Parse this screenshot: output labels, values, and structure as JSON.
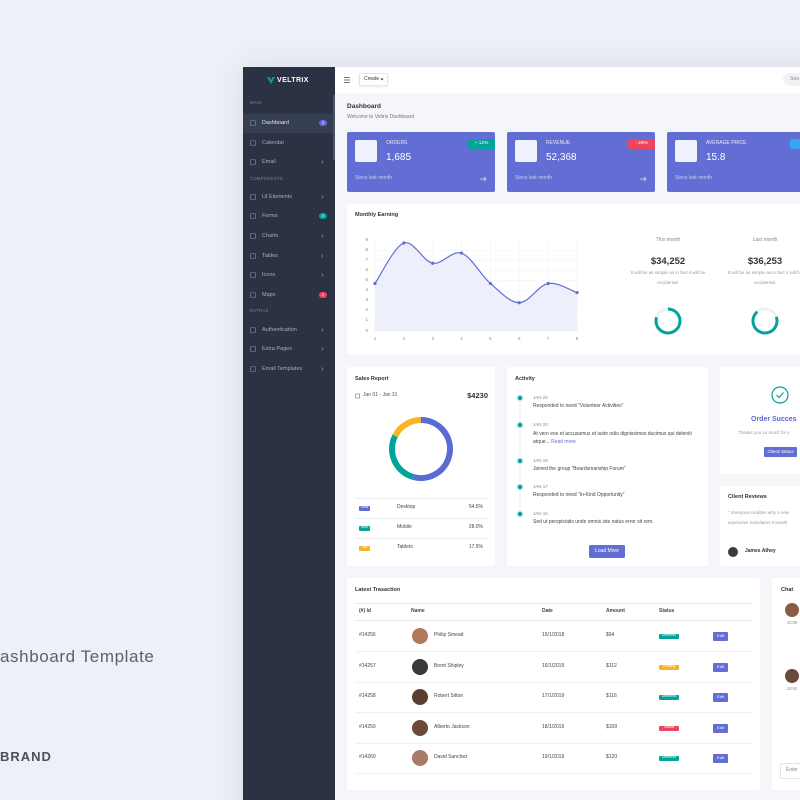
{
  "promo": {
    "title": "ashboard Template",
    "brand": "BRAND"
  },
  "sidebar": {
    "logo": "VELTRIX",
    "sections": [
      {
        "heading": "MAIN",
        "items": [
          {
            "label": "Dashboard",
            "badge": "3"
          },
          {
            "label": "Calendar"
          },
          {
            "label": "Email"
          }
        ]
      },
      {
        "heading": "COMPONENTS",
        "items": [
          {
            "label": "UI Elements"
          },
          {
            "label": "Forms",
            "badge": "8"
          },
          {
            "label": "Charts"
          },
          {
            "label": "Tables"
          },
          {
            "label": "Icons"
          },
          {
            "label": "Maps",
            "badge": "2"
          }
        ]
      },
      {
        "heading": "EXTRAS",
        "items": [
          {
            "label": "Authentication"
          },
          {
            "label": "Extra Pages"
          },
          {
            "label": "Email Templates"
          }
        ]
      }
    ]
  },
  "topbar": {
    "create": "Create",
    "search": "Sea"
  },
  "header": {
    "title": "Dashboard",
    "subtitle": "Welcome to Veltrix Dashboard"
  },
  "stats": [
    {
      "label": "ORDERS",
      "value": "1,685",
      "change": "+ 12%",
      "footer": "Since last month"
    },
    {
      "label": "REVENUE",
      "value": "52,368",
      "change": "- 28%",
      "footer": "Since last month"
    },
    {
      "label": "AVERAGE PRICE",
      "value": "15.8",
      "footer": "Since last month"
    }
  ],
  "monthly_earning": {
    "title": "Monthly Earning",
    "chart": {
      "type": "line",
      "x": [
        1,
        2,
        3,
        4,
        5,
        6,
        7,
        8
      ],
      "values": [
        4.7,
        8.7,
        6.7,
        7.7,
        4.7,
        2.8,
        4.7,
        3.8
      ],
      "yticks": [
        0,
        1,
        2,
        3,
        4,
        5,
        6,
        7,
        8,
        9
      ]
    },
    "summary": [
      {
        "period": "This month",
        "amount": "$34,252",
        "note": "It will be as simple as in fact it will be occidental."
      },
      {
        "period": "Last month",
        "amount": "$36,253",
        "note": "It will be as simple as in fact it will be occidental."
      }
    ]
  },
  "sales_report": {
    "title": "Sales Report",
    "range": "Jan 01 - Jan 31",
    "total": "$4230",
    "chart": {
      "type": "pie",
      "categories": [
        "Desktop",
        "Mobile",
        "Tablets"
      ],
      "badges": [
        "Desk",
        "Mob",
        "Tab"
      ],
      "values": [
        54.5,
        28.0,
        17.5
      ],
      "value_labels": [
        "54.5%",
        "28.0%",
        "17.5%"
      ],
      "colors": [
        "#5b6bd5",
        "#02a499",
        "#f8b425"
      ]
    }
  },
  "activity": {
    "title": "Activity",
    "items": [
      {
        "date": "JAN 22",
        "text": "Responded to need “Volunteer Activities”"
      },
      {
        "date": "JAN 20",
        "text": "At vero eos et accusamus et iusto odio dignissimos ducimus qui deleniti atque...",
        "link": "Read more"
      },
      {
        "date": "JAN 19",
        "text": "Joined the group “Boardsmanship Forum”"
      },
      {
        "date": "JAN 17",
        "text": "Responded to need “In-Kind Opportunity”"
      },
      {
        "date": "JAN 16",
        "text": "Sed ut perspiciatis unde omnis iste natus error sit rem."
      }
    ],
    "button": "Load More"
  },
  "order": {
    "title": "Order Succes",
    "text": "Thanks you so much for y",
    "button": "Check Status"
  },
  "reviews": {
    "title": "Client Reviews",
    "quote": [
      "\" Everyone realizes why a new",
      "expensive translators it would"
    ],
    "name": "James Athey"
  },
  "transactions": {
    "title": "Latest Trasaction",
    "columns": [
      "(#) Id",
      "Name",
      "Date",
      "Amount",
      "Status"
    ],
    "rows": [
      [
        "#14256",
        "Philip Smead",
        "15/1/2018",
        "$94",
        "Delivered"
      ],
      [
        "#14257",
        "Brent Shipley",
        "16/1/2019",
        "$112",
        "Pending"
      ],
      [
        "#14258",
        "Robert Sitton",
        "17/1/2019",
        "$116",
        "Delivered"
      ],
      [
        "#14259",
        "Alberto Jackson",
        "18/1/2019",
        "$109",
        "Cancel"
      ],
      [
        "#14260",
        "David Sanchez",
        "19/1/2019",
        "$120",
        "Delivered"
      ]
    ],
    "action": "Edit"
  },
  "chat": {
    "title": "Chat",
    "times": [
      "10:00",
      "10:04"
    ],
    "input": "Enter"
  }
}
